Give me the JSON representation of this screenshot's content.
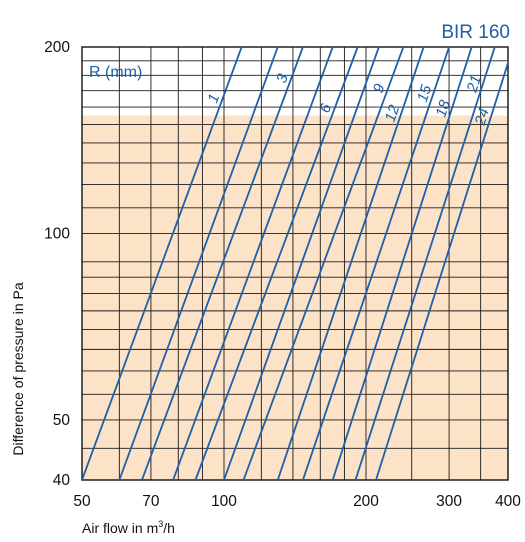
{
  "chart_data": {
    "type": "line",
    "title": "BIR 160",
    "xlabel": "Air flow in m",
    "xlabel_sup": "3",
    "xlabel_suffix": "/h",
    "ylabel": "Difference of pressure in Pa",
    "x_scale": "log",
    "y_scale": "log",
    "xlim": [
      50,
      400
    ],
    "ylim": [
      40,
      200
    ],
    "x_tick_labels": [
      {
        "value": 50,
        "label": "50"
      },
      {
        "value": 70,
        "label": "70"
      },
      {
        "value": 100,
        "label": "100"
      },
      {
        "value": 200,
        "label": "200"
      },
      {
        "value": 300,
        "label": "300"
      },
      {
        "value": 400,
        "label": "400"
      }
    ],
    "y_tick_labels": [
      {
        "value": 40,
        "label": "40"
      },
      {
        "value": 50,
        "label": "50"
      },
      {
        "value": 100,
        "label": "100"
      },
      {
        "value": 200,
        "label": "200"
      }
    ],
    "x_gridlines": [
      50,
      60,
      70,
      80,
      90,
      100,
      120,
      140,
      160,
      180,
      200,
      250,
      300,
      350,
      400
    ],
    "y_gridlines": [
      40,
      45,
      50,
      55,
      60,
      65,
      70,
      75,
      80,
      85,
      90,
      100,
      110,
      120,
      130,
      140,
      150,
      160,
      170,
      180,
      190,
      200
    ],
    "grid": true,
    "shaded_region": {
      "y_from": 40,
      "y_to": 155,
      "color": "#fce3c8"
    },
    "legend_title": "R (mm)",
    "line_color": "#1f5fa8",
    "series": [
      {
        "name": "1",
        "labeled": true,
        "points": [
          [
            50,
            40
          ],
          [
            109,
            200
          ]
        ]
      },
      {
        "name": "",
        "labeled": false,
        "points": [
          [
            60,
            40
          ],
          [
            130,
            200
          ]
        ]
      },
      {
        "name": "3",
        "labeled": true,
        "points": [
          [
            67,
            40
          ],
          [
            147,
            200
          ]
        ]
      },
      {
        "name": "",
        "labeled": false,
        "points": [
          [
            78,
            40
          ],
          [
            170,
            200
          ]
        ]
      },
      {
        "name": "6",
        "labeled": true,
        "points": [
          [
            87,
            40
          ],
          [
            192,
            200
          ]
        ]
      },
      {
        "name": "",
        "labeled": false,
        "points": [
          [
            100,
            40
          ],
          [
            213,
            200
          ]
        ]
      },
      {
        "name": "9",
        "labeled": true,
        "points": [
          [
            110,
            40
          ],
          [
            240,
            200
          ]
        ]
      },
      {
        "name": "12",
        "labeled": true,
        "points": [
          [
            130,
            40
          ],
          [
            265,
            200
          ]
        ]
      },
      {
        "name": "15",
        "labeled": true,
        "points": [
          [
            147,
            40
          ],
          [
            300,
            200
          ]
        ]
      },
      {
        "name": "18",
        "labeled": true,
        "points": [
          [
            170,
            40
          ],
          [
            335,
            200
          ]
        ]
      },
      {
        "name": "21",
        "labeled": true,
        "points": [
          [
            190,
            40
          ],
          [
            375,
            200
          ]
        ]
      },
      {
        "name": "24",
        "labeled": true,
        "points": [
          [
            210,
            40
          ],
          [
            410,
            200
          ]
        ]
      }
    ]
  }
}
